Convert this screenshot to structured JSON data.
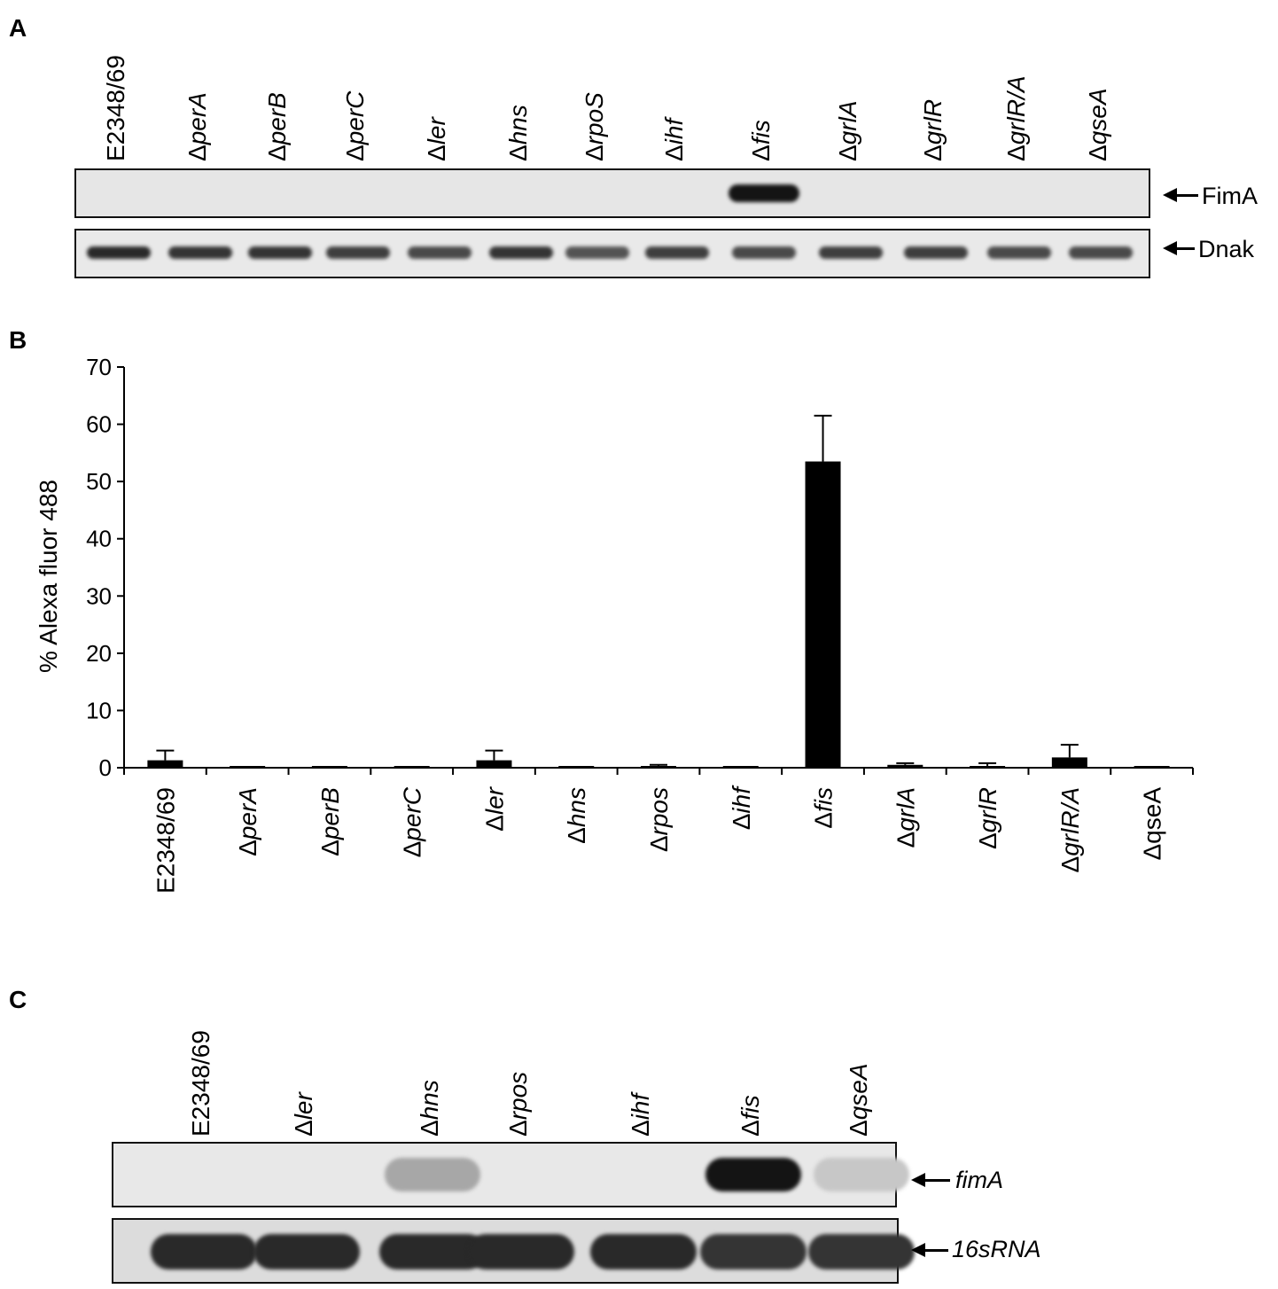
{
  "panels": {
    "a": "A",
    "b": "B",
    "c": "C"
  },
  "blot_a": {
    "lanes": [
      {
        "prefix": "",
        "name": "E2348/69"
      },
      {
        "prefix": "Δ",
        "name": "perA"
      },
      {
        "prefix": "Δ",
        "name": "perB"
      },
      {
        "prefix": "Δ",
        "name": "perC"
      },
      {
        "prefix": "Δ",
        "name": "ler"
      },
      {
        "prefix": "Δ",
        "name": "hns"
      },
      {
        "prefix": "Δ",
        "name": "rpoS"
      },
      {
        "prefix": "Δ",
        "name": "ihf"
      },
      {
        "prefix": "Δ",
        "name": "fis"
      },
      {
        "prefix": "Δ",
        "name": "grlA"
      },
      {
        "prefix": "Δ",
        "name": "grlR"
      },
      {
        "prefix": "Δ",
        "name": "grlR/A"
      },
      {
        "prefix": "Δ",
        "name": "qseA"
      }
    ],
    "band1_label": "FimA",
    "band2_label": "Dnak",
    "band1_intensity": [
      0,
      0,
      0,
      0,
      0,
      0,
      0,
      0,
      1,
      0,
      0,
      0,
      0
    ],
    "band2_intensity": [
      0.9,
      0.85,
      0.85,
      0.8,
      0.75,
      0.85,
      0.7,
      0.8,
      0.75,
      0.8,
      0.8,
      0.75,
      0.75
    ]
  },
  "chart_data": {
    "type": "bar",
    "ylabel": "% Alexa fluor 488",
    "ylim": [
      0,
      70
    ],
    "yticks": [
      0,
      10,
      20,
      30,
      40,
      50,
      60,
      70
    ],
    "categories": [
      {
        "prefix": "",
        "name": "E2348/69",
        "italic": false
      },
      {
        "prefix": "Δ",
        "name": "perA",
        "italic": true
      },
      {
        "prefix": "Δ",
        "name": "perB",
        "italic": true
      },
      {
        "prefix": "Δ",
        "name": "perC",
        "italic": true
      },
      {
        "prefix": "Δ",
        "name": "ler",
        "italic": true
      },
      {
        "prefix": "Δ",
        "name": "hns",
        "italic": true
      },
      {
        "prefix": "Δ",
        "name": "rpos",
        "italic": true
      },
      {
        "prefix": "Δ",
        "name": "ihf",
        "italic": true
      },
      {
        "prefix": "Δ",
        "name": "fis",
        "italic": true
      },
      {
        "prefix": "Δ",
        "name": "grlA",
        "italic": true
      },
      {
        "prefix": "Δ",
        "name": "grlR",
        "italic": true
      },
      {
        "prefix": "Δ",
        "name": "grlR/A",
        "italic": true
      },
      {
        "prefix": "Δ",
        "name": "qseA",
        "italic": false
      }
    ],
    "values": [
      1.3,
      0.2,
      0.2,
      0.2,
      1.3,
      0.2,
      0.3,
      0.0,
      53.5,
      0.5,
      0.3,
      1.8,
      0.1
    ],
    "errors": [
      1.7,
      0,
      0,
      0,
      1.7,
      0,
      0.2,
      0,
      8.0,
      0.3,
      0.5,
      2.2,
      0
    ],
    "bar_color": "#000000",
    "grid": false
  },
  "blot_c": {
    "lanes": [
      {
        "prefix": "",
        "name": "E2348/69"
      },
      {
        "prefix": "Δ",
        "name": "ler"
      },
      {
        "prefix": "Δ",
        "name": "hns"
      },
      {
        "prefix": "Δ",
        "name": "rpos"
      },
      {
        "prefix": "Δ",
        "name": "ihf"
      },
      {
        "prefix": "Δ",
        "name": "fis"
      },
      {
        "prefix": "Δ",
        "name": "qseA"
      }
    ],
    "band1_label": "fimA",
    "band2_label": "16sRNA",
    "band1_intensity": [
      0,
      0,
      0.3,
      0,
      0,
      1,
      0.15
    ],
    "band2_intensity": [
      0.9,
      0.9,
      0.9,
      0.9,
      0.9,
      0.85,
      0.85
    ]
  }
}
